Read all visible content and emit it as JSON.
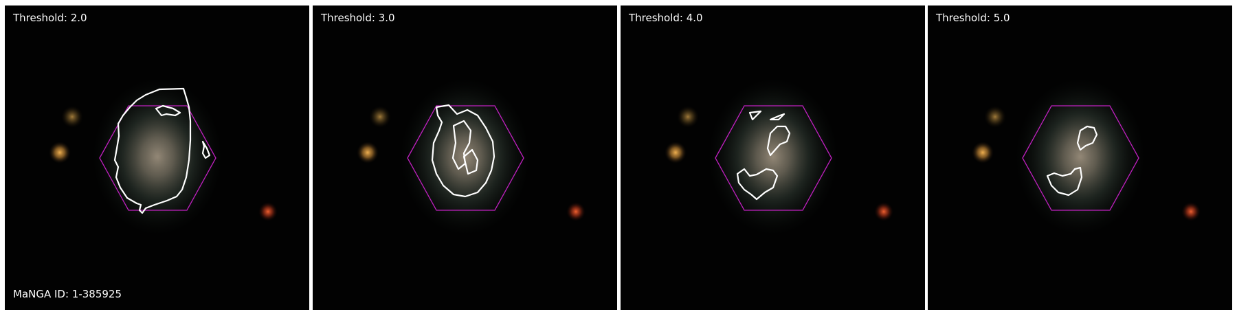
{
  "figure": {
    "manga_id_label": "MaNGA ID: 1-385925",
    "hexagon_color": "#c020c0",
    "contour_color": "#ffffff",
    "panels": [
      {
        "threshold_label": "Threshold: 2.0"
      },
      {
        "threshold_label": "Threshold: 3.0"
      },
      {
        "threshold_label": "Threshold: 4.0"
      },
      {
        "threshold_label": "Threshold: 5.0"
      }
    ]
  }
}
